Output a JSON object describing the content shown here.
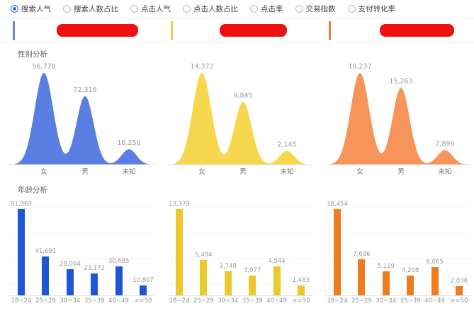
{
  "filters": {
    "options": [
      {
        "label": "搜索人气",
        "selected": true
      },
      {
        "label": "搜索人数占比",
        "selected": false
      },
      {
        "label": "点击人气",
        "selected": false
      },
      {
        "label": "点击人数占比",
        "selected": false
      },
      {
        "label": "点击率",
        "selected": false
      },
      {
        "label": "交易指数",
        "selected": false
      },
      {
        "label": "支付转化率",
        "selected": false
      }
    ]
  },
  "legend": {
    "columns": [
      {
        "accent_color": "#6f87c5",
        "redacted": true
      },
      {
        "accent_color": "#e6cf4e",
        "redacted": true
      },
      {
        "accent_color": "#e8833c",
        "redacted": true
      }
    ],
    "redaction_color": "#ef1111"
  },
  "sections": {
    "gender_title": "性别分析",
    "age_title": "年龄分析"
  },
  "chart_data": [
    {
      "type": "area",
      "section": "gender",
      "column": 1,
      "color": "#5b7ee3",
      "categories": [
        "女",
        "男",
        "未知"
      ],
      "values": [
        96770,
        72316,
        16250
      ],
      "ylim": [
        0,
        100000
      ],
      "grid": false
    },
    {
      "type": "area",
      "section": "gender",
      "column": 2,
      "color": "#f6d74d",
      "categories": [
        "女",
        "男",
        "未知"
      ],
      "values": [
        14372,
        9845,
        2145
      ],
      "ylim": [
        0,
        15000
      ],
      "grid": false
    },
    {
      "type": "area",
      "section": "gender",
      "column": 3,
      "color": "#f79459",
      "categories": [
        "女",
        "男",
        "未知"
      ],
      "values": [
        18237,
        15263,
        2896
      ],
      "ylim": [
        0,
        19000
      ],
      "grid": false
    },
    {
      "type": "bar",
      "section": "age",
      "column": 1,
      "color": "#1f56d6",
      "categories": [
        "18~24",
        "25~29",
        "30~34",
        "35~39",
        "40~49",
        ">=50"
      ],
      "values": [
        91969,
        41691,
        28004,
        23172,
        30685,
        10807
      ],
      "ylim": [
        0,
        95000
      ],
      "grid": true
    },
    {
      "type": "bar",
      "section": "age",
      "column": 2,
      "color": "#edc72e",
      "categories": [
        "18~24",
        "25~29",
        "30~34",
        "35~39",
        "40~49",
        ">=50"
      ],
      "values": [
        13379,
        5494,
        3748,
        3077,
        4544,
        1483
      ],
      "ylim": [
        0,
        14000
      ],
      "grid": true
    },
    {
      "type": "bar",
      "section": "age",
      "column": 3,
      "color": "#ef7d1f",
      "categories": [
        "18~24",
        "25~29",
        "30~34",
        "35~39",
        "40~49",
        ">=50"
      ],
      "values": [
        18454,
        7686,
        5119,
        4208,
        6065,
        2036
      ],
      "ylim": [
        0,
        19000
      ],
      "grid": true
    }
  ]
}
